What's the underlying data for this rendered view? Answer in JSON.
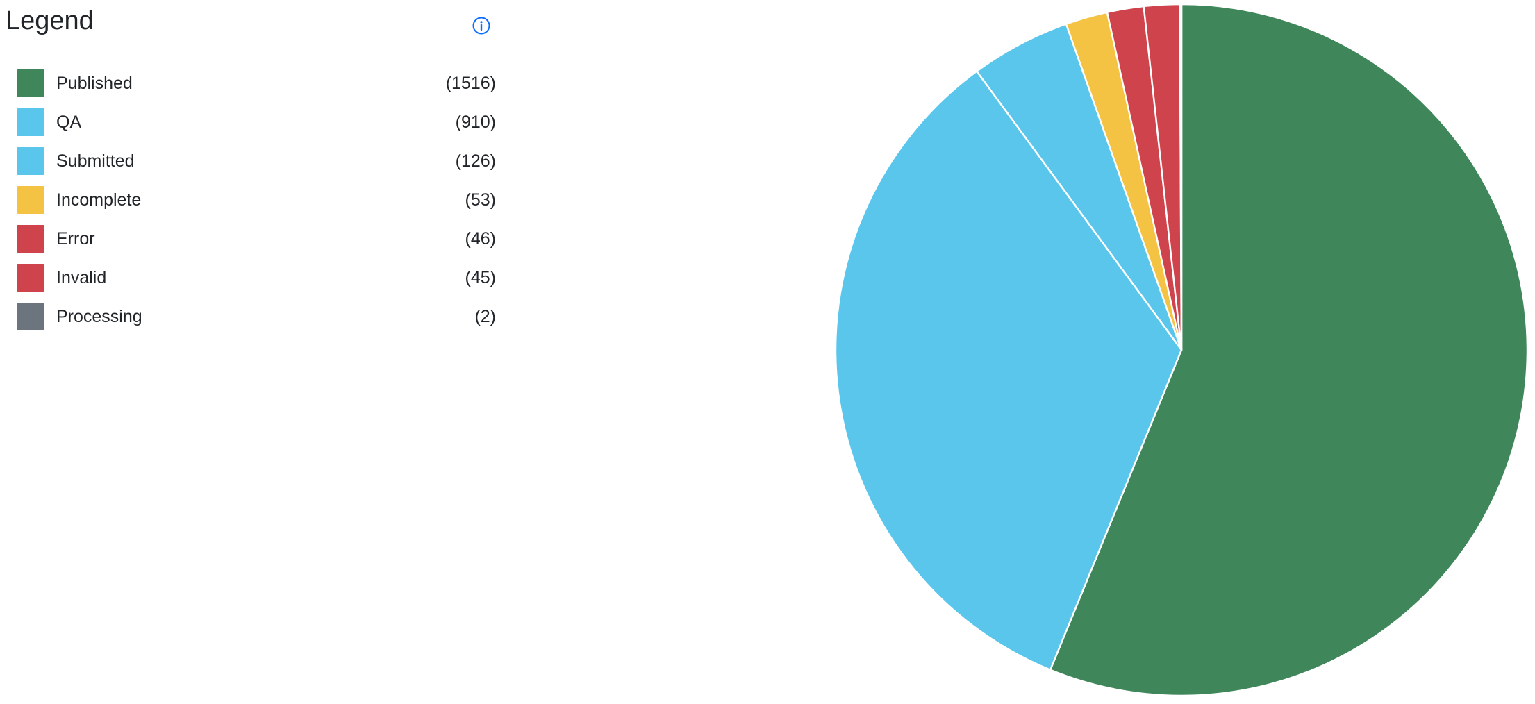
{
  "legend": {
    "title": "Legend",
    "info_icon": "info-circle-icon"
  },
  "chart_data": {
    "type": "pie",
    "title": "",
    "categories": [
      "Published",
      "QA",
      "Submitted",
      "Incomplete",
      "Error",
      "Invalid",
      "Processing"
    ],
    "values": [
      1516,
      910,
      126,
      53,
      46,
      45,
      2
    ],
    "counts_display": [
      "(1516)",
      "(910)",
      "(126)",
      "(53)",
      "(46)",
      "(45)",
      "(2)"
    ],
    "colors": [
      "#3f865a",
      "#5bc6eb",
      "#5bc6eb",
      "#f5c344",
      "#cf434c",
      "#cf434c",
      "#6c757d"
    ],
    "start": "12 o'clock, clockwise",
    "legend_position": "left"
  }
}
